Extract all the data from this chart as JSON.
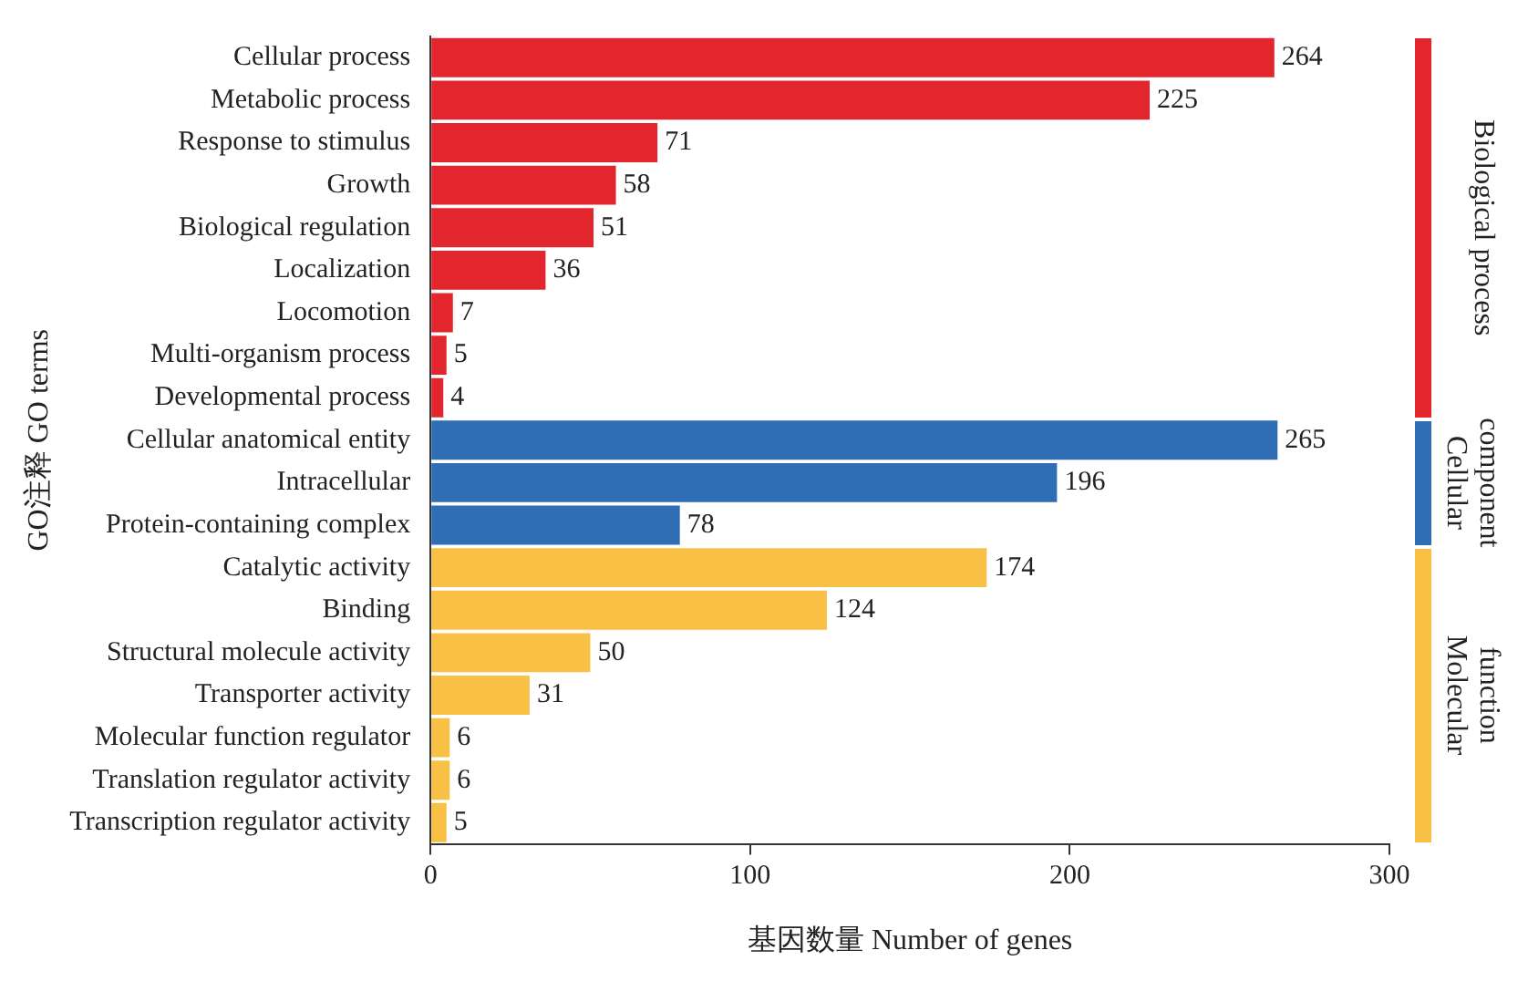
{
  "chart_data": {
    "type": "bar",
    "orientation": "horizontal",
    "xlabel": "基因数量 Number of genes",
    "ylabel": "GO注释 GO terms",
    "xlim": [
      0,
      300
    ],
    "xticks": [
      0,
      100,
      200,
      300
    ],
    "data_labels": true,
    "categories": [
      "Cellular process",
      "Metabolic process",
      "Response to stimulus",
      "Growth",
      "Biological regulation",
      "Localization",
      "Locomotion",
      "Multi-organism process",
      "Developmental process",
      "Cellular anatomical entity",
      "Intracellular",
      "Protein-containing complex",
      "Catalytic activity",
      "Binding",
      "Structural molecule activity",
      "Transporter activity",
      "Molecular function regulator",
      "Translation regulator activity",
      "Transcription regulator activity"
    ],
    "series": [
      {
        "name": "Biological process",
        "color": "#e3262e",
        "values": [
          264,
          225,
          71,
          58,
          51,
          36,
          7,
          5,
          4,
          null,
          null,
          null,
          null,
          null,
          null,
          null,
          null,
          null,
          null
        ]
      },
      {
        "name": "Cellular component",
        "color": "#2f6db5",
        "values": [
          null,
          null,
          null,
          null,
          null,
          null,
          null,
          null,
          null,
          265,
          196,
          78,
          null,
          null,
          null,
          null,
          null,
          null,
          null
        ]
      },
      {
        "name": "Molecular function",
        "color": "#f8c146",
        "values": [
          null,
          null,
          null,
          null,
          null,
          null,
          null,
          null,
          null,
          null,
          null,
          null,
          174,
          124,
          50,
          31,
          6,
          6,
          5
        ]
      }
    ]
  }
}
